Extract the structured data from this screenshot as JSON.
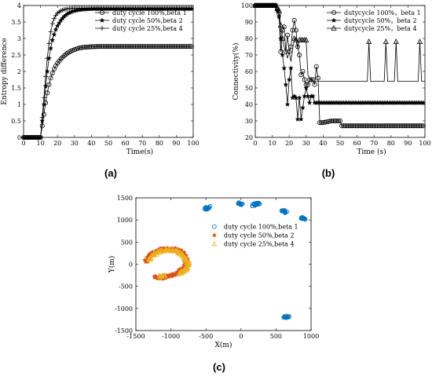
{
  "subfigure_labels": [
    "(a)",
    "(b)",
    "(c)"
  ],
  "chart_data": [
    {
      "type": "line",
      "label": "(a)",
      "xlabel": "Time(s)",
      "ylabel": "Entropy difference",
      "xlim": [
        0,
        100
      ],
      "ylim": [
        0,
        4
      ],
      "xticks": [
        "0",
        "10",
        "20",
        "30",
        "40",
        "50",
        "60",
        "70",
        "80",
        "90",
        "100"
      ],
      "yticks": [
        "0",
        "0.5",
        "1",
        "1.5",
        "2",
        "2.5",
        "3",
        "3.5",
        "4"
      ],
      "grid": false,
      "legend": "top-right",
      "series": [
        {
          "name": "duty cycle 100%,beta 1",
          "marker": "circle",
          "x": [
            0,
            10,
            11,
            12,
            13,
            14,
            15,
            16,
            17,
            18,
            19,
            20,
            22,
            24,
            26,
            28,
            30,
            32,
            35,
            40,
            45,
            50,
            60,
            70,
            80,
            90,
            100
          ],
          "y": [
            0,
            0,
            0.35,
            0.7,
            1.05,
            1.35,
            1.6,
            1.8,
            1.95,
            2.07,
            2.17,
            2.25,
            2.38,
            2.48,
            2.56,
            2.62,
            2.66,
            2.7,
            2.73,
            2.75,
            2.76,
            2.76,
            2.76,
            2.76,
            2.76,
            2.76,
            2.76
          ]
        },
        {
          "name": "duty cycle 50%,beta 2",
          "marker": "star",
          "x": [
            0,
            10,
            11,
            12,
            13,
            14,
            15,
            16,
            17,
            18,
            19,
            20,
            22,
            24,
            26,
            28,
            30,
            32,
            35,
            40,
            45,
            50,
            60,
            70,
            80,
            90,
            100
          ],
          "y": [
            0,
            0,
            0.5,
            1.0,
            1.55,
            2.0,
            2.4,
            2.7,
            2.95,
            3.12,
            3.27,
            3.38,
            3.55,
            3.67,
            3.75,
            3.8,
            3.84,
            3.86,
            3.88,
            3.9,
            3.9,
            3.9,
            3.9,
            3.9,
            3.9,
            3.9,
            3.9
          ]
        },
        {
          "name": "duty cycle 25%,beta 4",
          "marker": "plus",
          "x": [
            0,
            10,
            11,
            12,
            13,
            14,
            15,
            16,
            17,
            18,
            19,
            20,
            22,
            24,
            26,
            28,
            30,
            32,
            35,
            40,
            45,
            50,
            60,
            70,
            80,
            90,
            100
          ],
          "y": [
            0,
            0,
            0.6,
            1.2,
            1.85,
            2.4,
            2.85,
            3.2,
            3.45,
            3.6,
            3.7,
            3.77,
            3.84,
            3.88,
            3.9,
            3.91,
            3.92,
            3.92,
            3.92,
            3.92,
            3.92,
            3.92,
            3.92,
            3.92,
            3.92,
            3.92,
            3.92
          ]
        }
      ]
    },
    {
      "type": "line",
      "label": "(b)",
      "xlabel": "Time (s)",
      "ylabel": "Connectivity(%)",
      "xlim": [
        0,
        100
      ],
      "ylim": [
        20,
        100
      ],
      "xticks": [
        "0",
        "10",
        "20",
        "30",
        "40",
        "50",
        "60",
        "70",
        "80",
        "90",
        "100"
      ],
      "yticks": [
        "20",
        "30",
        "40",
        "50",
        "60",
        "70",
        "80",
        "90",
        "100"
      ],
      "grid": false,
      "legend": "top-right",
      "series": [
        {
          "name": "dutycycle 100%，beta 1",
          "marker": "circle",
          "x": [
            0,
            12,
            13,
            14,
            15,
            16,
            17,
            18,
            19,
            20,
            21,
            22,
            23,
            24,
            25,
            26,
            27,
            28,
            29,
            30,
            31,
            32,
            33,
            34,
            35,
            36,
            37,
            38,
            39,
            40,
            45,
            50,
            51,
            55,
            60,
            70,
            80,
            90,
            100
          ],
          "y": [
            100,
            100,
            98,
            95,
            72,
            85,
            87,
            72,
            82,
            72,
            75,
            85,
            91,
            85,
            75,
            70,
            58,
            60,
            55,
            52,
            52,
            55,
            55,
            55,
            52,
            63,
            56,
            29,
            29,
            29,
            30,
            30,
            27,
            27,
            27,
            27,
            27,
            27,
            27
          ]
        },
        {
          "name": "dutycycle 50%，beta 2",
          "marker": "star",
          "x": [
            0,
            12,
            13,
            14,
            15,
            16,
            17,
            18,
            19,
            20,
            21,
            22,
            23,
            24,
            25,
            26,
            27,
            28,
            29,
            30,
            31,
            32,
            33,
            34,
            35,
            36,
            37,
            38,
            40,
            50,
            60,
            70,
            80,
            90,
            100
          ],
          "y": [
            100,
            100,
            97,
            93,
            80,
            70,
            62,
            52,
            40,
            55,
            62,
            44,
            45,
            44,
            31,
            44,
            31,
            38,
            45,
            50,
            45,
            41,
            45,
            45,
            41,
            41,
            41,
            41,
            41,
            41,
            41,
            41,
            41,
            41,
            41
          ]
        },
        {
          "name": "dutycycle 25%，beta 4",
          "marker": "triangle",
          "x": [
            0,
            12,
            13,
            14,
            15,
            16,
            17,
            18,
            19,
            20,
            21,
            22,
            23,
            24,
            25,
            26,
            27,
            28,
            29,
            30,
            31,
            32,
            33,
            34,
            35,
            36,
            37,
            38,
            40,
            50,
            60,
            66,
            67,
            68,
            70,
            76,
            77,
            78,
            80,
            82,
            83,
            84,
            86,
            90,
            96,
            97,
            98,
            100
          ],
          "y": [
            100,
            100,
            98,
            97,
            88,
            80,
            75,
            72,
            68,
            72,
            66,
            73,
            80,
            79,
            74,
            79,
            79,
            79,
            79,
            79,
            58,
            56,
            55,
            54,
            54,
            54,
            54,
            54,
            54,
            54,
            54,
            54,
            78,
            54,
            54,
            54,
            78,
            54,
            54,
            54,
            78,
            54,
            54,
            54,
            54,
            78,
            54,
            54
          ]
        }
      ]
    },
    {
      "type": "scatter",
      "label": "(c)",
      "xlabel": "X(m)",
      "ylabel": "Y(m)",
      "xlim": [
        -1500,
        1000
      ],
      "ylim": [
        -1500,
        1500
      ],
      "xticks": [
        "-1500",
        "-1000",
        "-500",
        "0",
        "500",
        "1000"
      ],
      "yticks": [
        "-1500",
        "-1000",
        "-500",
        "0",
        "500",
        "1000",
        "1500"
      ],
      "grid": false,
      "legend": "upper-middle",
      "series": [
        {
          "name": "duty cycle 100%,beta 1",
          "marker": "circle",
          "color": "#0072BD",
          "clusters": [
            [
              -480,
              1270
            ],
            [
              -460,
              1290
            ],
            [
              -500,
              1250
            ],
            [
              -10,
              1370
            ],
            [
              10,
              1360
            ],
            [
              -30,
              1380
            ],
            [
              200,
              1360
            ],
            [
              230,
              1350
            ],
            [
              250,
              1370
            ],
            [
              180,
              1340
            ],
            [
              600,
              1220
            ],
            [
              630,
              1200
            ],
            [
              650,
              1180
            ],
            [
              880,
              1030
            ],
            [
              900,
              1010
            ],
            [
              860,
              1050
            ],
            [
              650,
              -1190
            ],
            [
              630,
              -1200
            ],
            [
              670,
              -1180
            ]
          ]
        },
        {
          "name": "duty cycle 50%,beta 2",
          "marker": "star",
          "color": "#D95319",
          "clusters": [
            [
              -1350,
              80
            ],
            [
              -1320,
              150
            ],
            [
              -1290,
              210
            ],
            [
              -1250,
              260
            ],
            [
              -1200,
              300
            ],
            [
              -1150,
              330
            ],
            [
              -1100,
              340
            ],
            [
              -1050,
              350
            ],
            [
              -1000,
              340
            ],
            [
              -950,
              330
            ],
            [
              -900,
              320
            ],
            [
              -860,
              300
            ],
            [
              -830,
              260
            ],
            [
              -800,
              200
            ],
            [
              -780,
              120
            ],
            [
              -780,
              40
            ],
            [
              -800,
              -30
            ],
            [
              -820,
              -100
            ],
            [
              -860,
              -150
            ],
            [
              -900,
              -200
            ],
            [
              -950,
              -230
            ],
            [
              -1000,
              -250
            ],
            [
              -1050,
              -270
            ],
            [
              -1100,
              -290
            ],
            [
              -1140,
              -310
            ],
            [
              -1170,
              -300
            ],
            [
              -1210,
              -280
            ]
          ]
        },
        {
          "name": "duty cycle 25%,beta 4",
          "marker": "triangle",
          "color": "#EDB120",
          "clusters": [
            [
              -1300,
              120
            ],
            [
              -1260,
              190
            ],
            [
              -1220,
              240
            ],
            [
              -1170,
              280
            ],
            [
              -1120,
              310
            ],
            [
              -1070,
              320
            ],
            [
              -1020,
              320
            ],
            [
              -970,
              310
            ],
            [
              -920,
              290
            ],
            [
              -880,
              260
            ],
            [
              -850,
              220
            ],
            [
              -820,
              160
            ],
            [
              -790,
              100
            ],
            [
              -760,
              40
            ],
            [
              -750,
              -20
            ],
            [
              -760,
              -80
            ],
            [
              -790,
              -130
            ],
            [
              -830,
              -170
            ],
            [
              -870,
              -190
            ],
            [
              -1100,
              -260
            ],
            [
              -1150,
              -280
            ]
          ]
        }
      ]
    }
  ]
}
